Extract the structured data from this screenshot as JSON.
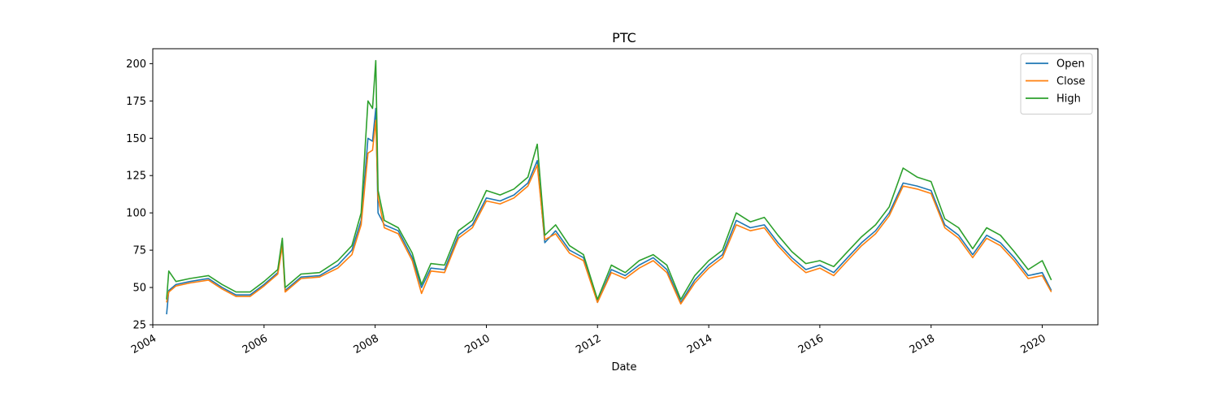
{
  "chart_data": {
    "type": "line",
    "title": "PTC",
    "xlabel": "Date",
    "ylabel": "",
    "x_axis_type": "date",
    "xlim": [
      "2004-01-01",
      "2021-01-01"
    ],
    "ylim": [
      25,
      210
    ],
    "x_ticks": [
      "2004",
      "2006",
      "2008",
      "2010",
      "2012",
      "2014",
      "2016",
      "2018",
      "2020"
    ],
    "y_ticks": [
      25,
      50,
      75,
      100,
      125,
      150,
      175,
      200
    ],
    "grid": false,
    "legend_position": "top-right",
    "x": [
      "2004-04-01",
      "2004-04-15",
      "2004-06-01",
      "2004-09-01",
      "2005-01-01",
      "2005-04-01",
      "2005-07-01",
      "2005-10-01",
      "2006-01-01",
      "2006-04-01",
      "2006-05-01",
      "2006-05-20",
      "2006-09-01",
      "2007-01-01",
      "2007-05-01",
      "2007-08-01",
      "2007-10-01",
      "2007-11-15",
      "2007-12-15",
      "2008-01-05",
      "2008-01-20",
      "2008-03-01",
      "2008-06-01",
      "2008-09-01",
      "2008-11-01",
      "2009-01-01",
      "2009-04-01",
      "2009-07-01",
      "2009-10-01",
      "2010-01-01",
      "2010-04-01",
      "2010-07-01",
      "2010-10-01",
      "2010-12-01",
      "2011-01-20",
      "2011-04-01",
      "2011-07-01",
      "2011-10-01",
      "2012-01-01",
      "2012-04-01",
      "2012-07-01",
      "2012-10-01",
      "2013-01-01",
      "2013-04-01",
      "2013-07-01",
      "2013-10-01",
      "2014-01-01",
      "2014-04-01",
      "2014-07-01",
      "2014-10-01",
      "2015-01-01",
      "2015-04-01",
      "2015-07-01",
      "2015-10-01",
      "2016-01-01",
      "2016-04-01",
      "2016-07-01",
      "2016-10-01",
      "2017-01-01",
      "2017-04-01",
      "2017-07-01",
      "2017-10-01",
      "2018-01-01",
      "2018-04-01",
      "2018-07-01",
      "2018-10-01",
      "2019-01-01",
      "2019-04-01",
      "2019-07-01",
      "2019-10-01",
      "2020-01-01",
      "2020-03-01"
    ],
    "series": [
      {
        "name": "Open",
        "color": "#1f77b4",
        "values": [
          32,
          48,
          52,
          54,
          56,
          50,
          45,
          45,
          52,
          60,
          80,
          48,
          57,
          58,
          65,
          75,
          95,
          150,
          148,
          170,
          100,
          92,
          88,
          70,
          50,
          63,
          62,
          85,
          92,
          110,
          108,
          112,
          120,
          135,
          80,
          88,
          75,
          70,
          40,
          62,
          58,
          65,
          70,
          62,
          40,
          55,
          65,
          72,
          95,
          90,
          92,
          80,
          70,
          62,
          65,
          60,
          70,
          80,
          88,
          100,
          120,
          118,
          115,
          92,
          85,
          72,
          85,
          80,
          70,
          58,
          60,
          48
        ]
      },
      {
        "name": "Close",
        "color": "#ff7f0e",
        "values": [
          40,
          47,
          51,
          53,
          55,
          49,
          44,
          44,
          51,
          59,
          78,
          47,
          56,
          57,
          63,
          72,
          92,
          140,
          142,
          162,
          110,
          90,
          86,
          68,
          46,
          61,
          60,
          83,
          90,
          108,
          106,
          110,
          118,
          132,
          82,
          86,
          73,
          68,
          40,
          60,
          56,
          63,
          68,
          60,
          39,
          53,
          63,
          70,
          92,
          88,
          90,
          78,
          68,
          60,
          63,
          58,
          68,
          78,
          86,
          98,
          118,
          116,
          113,
          90,
          83,
          70,
          83,
          78,
          68,
          56,
          58,
          47
        ]
      },
      {
        "name": "High",
        "color": "#2ca02c",
        "values": [
          42,
          61,
          54,
          56,
          58,
          52,
          47,
          47,
          54,
          62,
          83,
          50,
          59,
          60,
          68,
          78,
          100,
          175,
          170,
          202,
          115,
          95,
          90,
          73,
          52,
          66,
          65,
          88,
          95,
          115,
          112,
          116,
          124,
          146,
          85,
          92,
          78,
          72,
          42,
          65,
          60,
          68,
          72,
          65,
          42,
          58,
          68,
          75,
          100,
          94,
          97,
          85,
          74,
          66,
          68,
          64,
          74,
          84,
          92,
          104,
          130,
          124,
          121,
          96,
          90,
          76,
          90,
          85,
          74,
          62,
          68,
          55
        ]
      }
    ]
  }
}
